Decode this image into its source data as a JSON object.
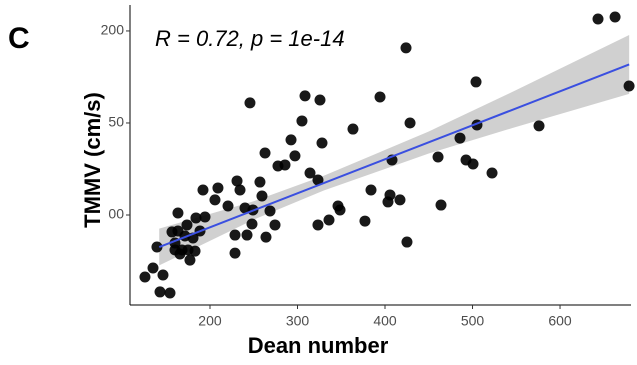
{
  "chart_data": {
    "type": "scatter",
    "panel_label": "C",
    "annotation": "R = 0.72, p = 1e-14",
    "x_label": "Dean number",
    "y_label": "TMMV (cm/s)",
    "xlim": [
      108.6,
      681.1
    ],
    "ylim": [
      51.1,
      214.1
    ],
    "xticks": [
      200,
      300,
      400,
      500,
      600
    ],
    "yticks": [
      200,
      {
        "value": 150,
        "label": "50"
      },
      {
        "value": 100,
        "label": "00"
      }
    ],
    "color": "#000000",
    "x": [
      134.9,
      125.7,
      142.9,
      146.3,
      154.3,
      139.4,
      160.0,
      165.7,
      171.4,
      163.4,
      156.6,
      163.4,
      160.0,
      174.9,
      173.7,
      180.6,
      182.9,
      177.1,
      184.0,
      168.0,
      188.6,
      194.3,
      205.7,
      209.1,
      220.6,
      230.9,
      228.6,
      228.6,
      234.3,
      240.0,
      249.1,
      242.3,
      248.0,
      245.7,
      257.1,
      259.4,
      262.9,
      264.0,
      268.6,
      274.3,
      277.7,
      285.7,
      292.6,
      297.1,
      305.1,
      308.6,
      314.3,
      323.4,
      325.7,
      328.0,
      323.4,
      336.0,
      346.3,
      348.6,
      363.4,
      377.1,
      384.0,
      394.3,
      403.4,
      405.7,
      408.0,
      417.1,
      424.0,
      428.6,
      425.1,
      464.0,
      460.6,
      485.7,
      492.6,
      500.6,
      504.0,
      505.1,
      522.3,
      576.0,
      643.4,
      678.9,
      662.9,
      192.0
    ],
    "values": [
      71.2,
      66.3,
      58.2,
      67.4,
      57.6,
      82.6,
      84.8,
      78.8,
      88.6,
      91.3,
      90.8,
      101.1,
      81.0,
      81.0,
      94.6,
      87.5,
      80.4,
      75.5,
      98.4,
      81.0,
      91.3,
      98.9,
      108.2,
      114.7,
      104.9,
      118.5,
      89.1,
      79.3,
      113.6,
      103.8,
      102.7,
      89.1,
      95.1,
      160.9,
      117.9,
      110.3,
      133.7,
      88.0,
      102.2,
      94.6,
      126.6,
      127.2,
      140.8,
      132.1,
      151.1,
      164.7,
      122.8,
      119.0,
      162.5,
      139.1,
      94.6,
      97.3,
      104.9,
      102.7,
      146.7,
      96.7,
      113.6,
      164.1,
      107.1,
      110.9,
      129.9,
      108.2,
      190.8,
      150.0,
      85.3,
      105.4,
      131.5,
      141.8,
      129.9,
      127.7,
      172.3,
      148.9,
      122.8,
      148.4,
      206.5,
      170.1,
      207.6,
      113.6
    ],
    "fit": {
      "x": [
        142,
        679
      ],
      "values": [
        82.6,
        181.8
      ],
      "color": "#3a4fe0"
    },
    "band": {
      "x": [
        142,
        250,
        330,
        450,
        550,
        679
      ],
      "upper": [
        92.6,
        107.5,
        121.3,
        145.4,
        167.9,
        197.8
      ],
      "lower": [
        72.6,
        97.5,
        113.3,
        133.4,
        147.9,
        165.8
      ],
      "color": "#c8c8c8"
    }
  }
}
